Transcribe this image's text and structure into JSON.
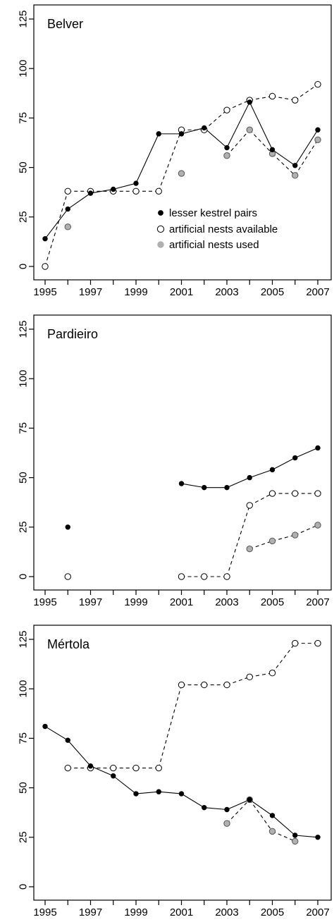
{
  "chart_data": {
    "type": "line",
    "x_ticks": [
      1995,
      1996,
      1997,
      1998,
      1999,
      2000,
      2001,
      2002,
      2003,
      2004,
      2005,
      2006,
      2007
    ],
    "x_tick_labels": [
      "1995",
      "1997",
      "1999",
      "2001",
      "2003",
      "2005",
      "2007"
    ],
    "x_tick_label_years": [
      1995,
      1997,
      1999,
      2001,
      2003,
      2005,
      2007
    ],
    "xlim": [
      1995,
      2007
    ],
    "ylim": [
      0,
      125
    ],
    "y_ticks": [
      0,
      25,
      50,
      75,
      100,
      125
    ],
    "y_tick_labels": [
      "0",
      "25",
      "50",
      "75",
      "100",
      "125"
    ],
    "legend": {
      "placement": "inside-right of first panel",
      "entries": [
        {
          "key": "pairs",
          "label": "lesser kestrel pairs",
          "marker": "filled-black"
        },
        {
          "key": "available",
          "label": "artificial nests available",
          "marker": "open-white"
        },
        {
          "key": "used",
          "label": "artificial nests used",
          "marker": "filled-grey"
        }
      ]
    },
    "colors": {
      "pairs": "#000000",
      "available": "#ffffff",
      "used": "#b0b0b0"
    },
    "panels": [
      {
        "title": "Belver",
        "pairs": [
          [
            1995,
            14
          ],
          [
            1996,
            29
          ],
          [
            1997,
            37
          ],
          [
            1998,
            39
          ],
          [
            1999,
            42
          ],
          [
            2000,
            67
          ],
          [
            2001,
            67
          ],
          [
            2002,
            70
          ],
          [
            2003,
            60
          ],
          [
            2004,
            83
          ],
          [
            2005,
            59
          ],
          [
            2006,
            51
          ],
          [
            2007,
            69
          ]
        ],
        "available": [
          [
            1995,
            0
          ],
          [
            1996,
            38
          ],
          [
            1997,
            38
          ],
          [
            1998,
            38
          ],
          [
            1999,
            38
          ],
          [
            2000,
            38
          ],
          [
            2001,
            69
          ],
          [
            2002,
            69
          ],
          [
            2003,
            79
          ],
          [
            2004,
            84
          ],
          [
            2005,
            86
          ],
          [
            2006,
            84
          ],
          [
            2007,
            92
          ]
        ],
        "used": [
          [
            1996,
            20
          ],
          [
            2001,
            47
          ],
          [
            2003,
            56
          ],
          [
            2004,
            69
          ],
          [
            2005,
            57
          ],
          [
            2006,
            46
          ],
          [
            2007,
            64
          ]
        ],
        "pairs_segments": [
          [
            0,
            12
          ]
        ],
        "available_segments": [
          [
            0,
            12
          ]
        ],
        "used_segments": [
          [
            2,
            6
          ]
        ]
      },
      {
        "title": "Pardieiro",
        "pairs": [
          [
            1996,
            25
          ],
          [
            2001,
            47
          ],
          [
            2002,
            45
          ],
          [
            2003,
            45
          ],
          [
            2004,
            50
          ],
          [
            2005,
            54
          ],
          [
            2006,
            60
          ],
          [
            2007,
            65
          ]
        ],
        "available": [
          [
            1996,
            0
          ],
          [
            2001,
            0
          ],
          [
            2002,
            0
          ],
          [
            2003,
            0
          ],
          [
            2004,
            36
          ],
          [
            2005,
            42
          ],
          [
            2006,
            42
          ],
          [
            2007,
            42
          ]
        ],
        "used": [
          [
            2004,
            14
          ],
          [
            2005,
            18
          ],
          [
            2006,
            21
          ],
          [
            2007,
            26
          ]
        ],
        "pairs_segments": [
          [
            1,
            7
          ]
        ],
        "available_segments": [
          [
            1,
            7
          ]
        ],
        "used_segments": [
          [
            0,
            3
          ]
        ]
      },
      {
        "title": "Mértola",
        "pairs": [
          [
            1995,
            81
          ],
          [
            1996,
            74
          ],
          [
            1997,
            61
          ],
          [
            1998,
            56
          ],
          [
            1999,
            47
          ],
          [
            2000,
            48
          ],
          [
            2001,
            47
          ],
          [
            2002,
            40
          ],
          [
            2003,
            39
          ],
          [
            2004,
            44
          ],
          [
            2005,
            36
          ],
          [
            2006,
            26
          ],
          [
            2007,
            25
          ]
        ],
        "available": [
          [
            1996,
            60
          ],
          [
            1997,
            60
          ],
          [
            1998,
            60
          ],
          [
            1999,
            60
          ],
          [
            2000,
            60
          ],
          [
            2001,
            102
          ],
          [
            2002,
            102
          ],
          [
            2003,
            102
          ],
          [
            2004,
            106
          ],
          [
            2005,
            108
          ],
          [
            2006,
            123
          ],
          [
            2007,
            123
          ]
        ],
        "used": [
          [
            2003,
            32
          ],
          [
            2004,
            44
          ],
          [
            2005,
            28
          ],
          [
            2006,
            23
          ]
        ],
        "pairs_segments": [
          [
            0,
            12
          ]
        ],
        "available_segments": [
          [
            0,
            11
          ]
        ],
        "used_segments": [
          [
            0,
            3
          ]
        ]
      }
    ]
  }
}
